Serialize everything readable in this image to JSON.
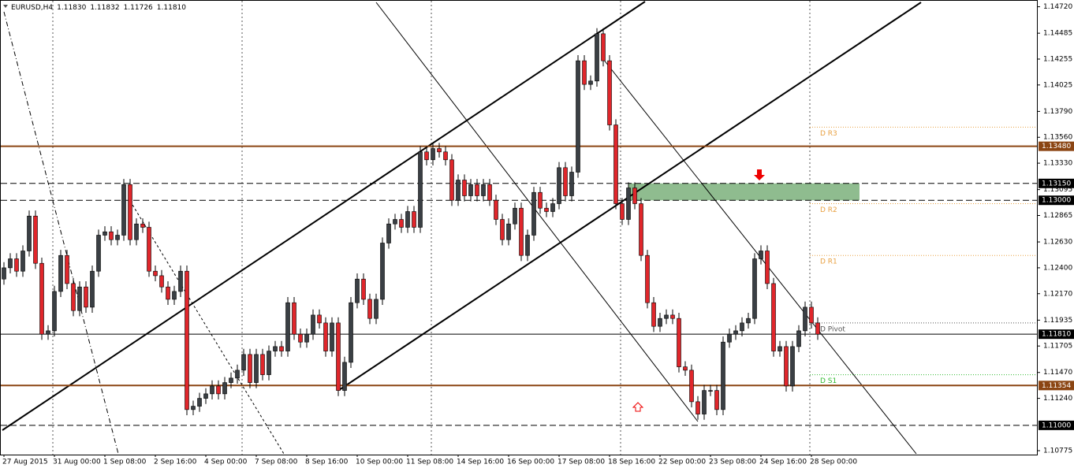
{
  "chart_data": {
    "type": "candlestick",
    "title": "EURUSD,H4",
    "header_values": [
      "1.11830",
      "1.11832",
      "1.11726",
      "1.11810"
    ],
    "up_color": "#3a3f44",
    "down_color": "#e0262b",
    "ylim": [
      1.1074,
      1.1478
    ],
    "yticks": [
      {
        "value": 1.1472,
        "label": "1.14720"
      },
      {
        "value": 1.14485,
        "label": "1.14485"
      },
      {
        "value": 1.14255,
        "label": "1.14255"
      },
      {
        "value": 1.14025,
        "label": "1.14025"
      },
      {
        "value": 1.1379,
        "label": "1.13790"
      },
      {
        "value": 1.1356,
        "label": "1.13560"
      },
      {
        "value": 1.1333,
        "label": "1.13330"
      },
      {
        "value": 1.13095,
        "label": "1.13095"
      },
      {
        "value": 1.12865,
        "label": "1.12865"
      },
      {
        "value": 1.1263,
        "label": "1.12630"
      },
      {
        "value": 1.124,
        "label": "1.12400"
      },
      {
        "value": 1.1217,
        "label": "1.12170"
      },
      {
        "value": 1.11935,
        "label": "1.11935"
      },
      {
        "value": 1.11705,
        "label": "1.11705"
      },
      {
        "value": 1.1147,
        "label": "1.11470"
      },
      {
        "value": 1.1124,
        "label": "1.11240"
      },
      {
        "value": 1.10775,
        "label": "1.10775"
      }
    ],
    "levels": [
      {
        "value": 1.1348,
        "label": "1.13480",
        "color": "#8b4513",
        "style": "solid"
      },
      {
        "value": 1.1315,
        "label": "1.13150",
        "color": "#000000",
        "style": "dashed"
      },
      {
        "value": 1.13,
        "label": "1.13000",
        "color": "#000000",
        "style": "dashed"
      },
      {
        "value": 1.1181,
        "label": "1.11810",
        "color": "#000000",
        "style": "thin"
      },
      {
        "value": 1.11354,
        "label": "1.11354",
        "color": "#8b4513",
        "style": "solid"
      },
      {
        "value": 1.11,
        "label": "1.11000",
        "color": "#000000",
        "style": "dashed"
      }
    ],
    "pivots": [
      {
        "name": "D R3",
        "value": 1.1365,
        "color": "#e8a040"
      },
      {
        "name": "D R2",
        "value": 1.1297,
        "color": "#e8a040"
      },
      {
        "name": "D R1",
        "value": 1.1251,
        "color": "#e8a040"
      },
      {
        "name": "D Pivot",
        "value": 1.1191,
        "color": "#555555"
      },
      {
        "name": "D S1",
        "value": 1.1145,
        "color": "#33bb33"
      }
    ],
    "zone": [
      1.13,
      1.1315
    ],
    "categories": [
      "27 Aug 2015",
      null,
      null,
      null,
      null,
      null,
      null,
      null,
      "31 Aug 00:00",
      null,
      null,
      null,
      null,
      null,
      null,
      null,
      "1 Sep 08:00",
      null,
      null,
      null,
      null,
      null,
      null,
      null,
      "2 Sep 16:00",
      null,
      null,
      null,
      null,
      null,
      null,
      null,
      "4 Sep 00:00",
      null,
      null,
      null,
      null,
      null,
      null,
      null,
      "7 Sep 08:00",
      null,
      null,
      null,
      null,
      null,
      null,
      null,
      "8 Sep 16:00",
      null,
      null,
      null,
      null,
      null,
      null,
      null,
      "10 Sep 00:00",
      null,
      null,
      null,
      null,
      null,
      null,
      null,
      "11 Sep 08:00",
      null,
      null,
      null,
      null,
      null,
      null,
      null,
      "14 Sep 16:00",
      null,
      null,
      null,
      null,
      null,
      null,
      null,
      "16 Sep 00:00",
      null,
      null,
      null,
      null,
      null,
      null,
      null,
      "17 Sep 08:00",
      null,
      null,
      null,
      null,
      null,
      null,
      null,
      "18 Sep 16:00",
      null,
      null,
      null,
      null,
      null,
      null,
      null,
      "22 Sep 00:00",
      null,
      null,
      null,
      null,
      null,
      null,
      null,
      "23 Sep 08:00",
      null,
      null,
      null,
      null,
      null,
      null,
      null,
      "24 Sep 16:00",
      null,
      null,
      null,
      null,
      null,
      null,
      null,
      "28 Sep 00:00",
      null
    ],
    "ohlc": [
      [
        1.123,
        1.1245,
        1.1225,
        1.124
      ],
      [
        1.124,
        1.1253,
        1.1235,
        1.1248
      ],
      [
        1.1248,
        1.1253,
        1.1232,
        1.1237
      ],
      [
        1.1237,
        1.126,
        1.1232,
        1.1255
      ],
      [
        1.1255,
        1.1291,
        1.125,
        1.1286
      ],
      [
        1.1286,
        1.1291,
        1.1239,
        1.1244
      ],
      [
        1.1244,
        1.1249,
        1.1176,
        1.1181
      ],
      [
        1.1181,
        1.1189,
        1.1176,
        1.1184
      ],
      [
        1.1184,
        1.1224,
        1.1179,
        1.1219
      ],
      [
        1.1219,
        1.1256,
        1.1214,
        1.1251
      ],
      [
        1.1251,
        1.1256,
        1.1221,
        1.1226
      ],
      [
        1.1226,
        1.1231,
        1.1197,
        1.1202
      ],
      [
        1.1202,
        1.1228,
        1.1197,
        1.1223
      ],
      [
        1.1223,
        1.1228,
        1.12,
        1.1205
      ],
      [
        1.1205,
        1.1242,
        1.12,
        1.1237
      ],
      [
        1.1237,
        1.1274,
        1.1232,
        1.1269
      ],
      [
        1.1269,
        1.1277,
        1.1264,
        1.1272
      ],
      [
        1.1272,
        1.1277,
        1.126,
        1.1265
      ],
      [
        1.1265,
        1.1274,
        1.126,
        1.1269
      ],
      [
        1.1269,
        1.1319,
        1.1264,
        1.1314
      ],
      [
        1.1314,
        1.1319,
        1.126,
        1.1265
      ],
      [
        1.1265,
        1.1284,
        1.126,
        1.1279
      ],
      [
        1.1279,
        1.1284,
        1.1271,
        1.1276
      ],
      [
        1.1276,
        1.1281,
        1.1232,
        1.1237
      ],
      [
        1.1237,
        1.1242,
        1.1228,
        1.1233
      ],
      [
        1.1233,
        1.1238,
        1.1218,
        1.1223
      ],
      [
        1.1223,
        1.1228,
        1.1207,
        1.1212
      ],
      [
        1.1212,
        1.1224,
        1.1207,
        1.1219
      ],
      [
        1.1219,
        1.1242,
        1.1214,
        1.1237
      ],
      [
        1.1237,
        1.1242,
        1.1109,
        1.1114
      ],
      [
        1.1114,
        1.1122,
        1.1109,
        1.1117
      ],
      [
        1.1117,
        1.1129,
        1.1112,
        1.1124
      ],
      [
        1.1124,
        1.1133,
        1.1119,
        1.1128
      ],
      [
        1.1128,
        1.114,
        1.1123,
        1.1135
      ],
      [
        1.1135,
        1.114,
        1.1123,
        1.1128
      ],
      [
        1.1128,
        1.1143,
        1.1123,
        1.1138
      ],
      [
        1.1138,
        1.1147,
        1.1133,
        1.1142
      ],
      [
        1.1142,
        1.1154,
        1.1137,
        1.1149
      ],
      [
        1.1149,
        1.1168,
        1.1144,
        1.1163
      ],
      [
        1.1163,
        1.1168,
        1.1133,
        1.1138
      ],
      [
        1.1138,
        1.1168,
        1.1133,
        1.1163
      ],
      [
        1.1163,
        1.1168,
        1.114,
        1.1145
      ],
      [
        1.1145,
        1.1171,
        1.114,
        1.1166
      ],
      [
        1.1166,
        1.1175,
        1.1161,
        1.117
      ],
      [
        1.117,
        1.1175,
        1.1161,
        1.1166
      ],
      [
        1.1166,
        1.1214,
        1.1161,
        1.1209
      ],
      [
        1.1209,
        1.1214,
        1.1176,
        1.1181
      ],
      [
        1.1181,
        1.1186,
        1.1169,
        1.1174
      ],
      [
        1.1174,
        1.1186,
        1.1169,
        1.1181
      ],
      [
        1.1181,
        1.1203,
        1.1176,
        1.1198
      ],
      [
        1.1198,
        1.1203,
        1.1186,
        1.1191
      ],
      [
        1.1191,
        1.1196,
        1.1161,
        1.1166
      ],
      [
        1.1166,
        1.1196,
        1.1161,
        1.1191
      ],
      [
        1.1191,
        1.1196,
        1.1126,
        1.1131
      ],
      [
        1.1131,
        1.1161,
        1.1126,
        1.1156
      ],
      [
        1.1156,
        1.1214,
        1.1151,
        1.1209
      ],
      [
        1.1209,
        1.1235,
        1.1204,
        1.123
      ],
      [
        1.123,
        1.1235,
        1.1207,
        1.1212
      ],
      [
        1.1212,
        1.1217,
        1.119,
        1.1195
      ],
      [
        1.1195,
        1.1217,
        1.119,
        1.1212
      ],
      [
        1.1212,
        1.1267,
        1.1207,
        1.1262
      ],
      [
        1.1262,
        1.1284,
        1.1257,
        1.1279
      ],
      [
        1.1279,
        1.1288,
        1.1274,
        1.1283
      ],
      [
        1.1283,
        1.1288,
        1.1271,
        1.1276
      ],
      [
        1.1276,
        1.1295,
        1.1271,
        1.129
      ],
      [
        1.129,
        1.1295,
        1.1271,
        1.1276
      ],
      [
        1.1276,
        1.1348,
        1.1271,
        1.1343
      ],
      [
        1.1343,
        1.1348,
        1.1331,
        1.1336
      ],
      [
        1.1336,
        1.1351,
        1.1331,
        1.1346
      ],
      [
        1.1346,
        1.1351,
        1.1338,
        1.1343
      ],
      [
        1.1343,
        1.1348,
        1.1331,
        1.1336
      ],
      [
        1.1336,
        1.1341,
        1.1295,
        1.13
      ],
      [
        1.13,
        1.1323,
        1.1295,
        1.1318
      ],
      [
        1.1318,
        1.1323,
        1.1299,
        1.1304
      ],
      [
        1.1304,
        1.1319,
        1.1299,
        1.1314
      ],
      [
        1.1314,
        1.1319,
        1.1299,
        1.1304
      ],
      [
        1.1304,
        1.1319,
        1.1299,
        1.1314
      ],
      [
        1.1314,
        1.1319,
        1.1295,
        1.13
      ],
      [
        1.13,
        1.1305,
        1.1278,
        1.1283
      ],
      [
        1.1283,
        1.1288,
        1.126,
        1.1265
      ],
      [
        1.1265,
        1.1284,
        1.126,
        1.1279
      ],
      [
        1.1279,
        1.1298,
        1.1274,
        1.1293
      ],
      [
        1.1293,
        1.1298,
        1.1246,
        1.1251
      ],
      [
        1.1251,
        1.1274,
        1.1246,
        1.1269
      ],
      [
        1.1269,
        1.1312,
        1.1264,
        1.1307
      ],
      [
        1.1307,
        1.1312,
        1.1288,
        1.1293
      ],
      [
        1.1293,
        1.1298,
        1.1285,
        1.129
      ],
      [
        1.129,
        1.1302,
        1.1285,
        1.1297
      ],
      [
        1.1297,
        1.1334,
        1.1292,
        1.1329
      ],
      [
        1.1329,
        1.1334,
        1.1299,
        1.1304
      ],
      [
        1.1304,
        1.133,
        1.1299,
        1.1325
      ],
      [
        1.1325,
        1.1429,
        1.132,
        1.1424
      ],
      [
        1.1424,
        1.1429,
        1.1398,
        1.1403
      ],
      [
        1.1403,
        1.1411,
        1.1398,
        1.1406
      ],
      [
        1.1406,
        1.1453,
        1.1401,
        1.1448
      ],
      [
        1.1448,
        1.1453,
        1.1419,
        1.1424
      ],
      [
        1.1424,
        1.1429,
        1.1362,
        1.1367
      ],
      [
        1.1367,
        1.1372,
        1.1292,
        1.1297
      ],
      [
        1.1297,
        1.1302,
        1.1278,
        1.1283
      ],
      [
        1.1283,
        1.1316,
        1.1278,
        1.1311
      ],
      [
        1.1311,
        1.1316,
        1.1292,
        1.1297
      ],
      [
        1.1297,
        1.1302,
        1.1246,
        1.1251
      ],
      [
        1.1251,
        1.1256,
        1.1204,
        1.1209
      ],
      [
        1.1209,
        1.1214,
        1.1183,
        1.1188
      ],
      [
        1.1188,
        1.12,
        1.1183,
        1.1195
      ],
      [
        1.1195,
        1.1203,
        1.119,
        1.1198
      ],
      [
        1.1198,
        1.1203,
        1.119,
        1.1195
      ],
      [
        1.1195,
        1.12,
        1.1147,
        1.1152
      ],
      [
        1.1152,
        1.1157,
        1.1144,
        1.1149
      ],
      [
        1.1149,
        1.1154,
        1.1116,
        1.1121
      ],
      [
        1.1121,
        1.1126,
        1.1105,
        1.111
      ],
      [
        1.111,
        1.1136,
        1.1105,
        1.1131
      ],
      [
        1.1131,
        1.1136,
        1.1126,
        1.1131
      ],
      [
        1.1131,
        1.1136,
        1.1109,
        1.1114
      ],
      [
        1.1114,
        1.1179,
        1.1109,
        1.1174
      ],
      [
        1.1174,
        1.1186,
        1.1169,
        1.1181
      ],
      [
        1.1181,
        1.1189,
        1.1176,
        1.1184
      ],
      [
        1.1184,
        1.1196,
        1.1179,
        1.1191
      ],
      [
        1.1191,
        1.12,
        1.1186,
        1.1195
      ],
      [
        1.1195,
        1.1253,
        1.119,
        1.1248
      ],
      [
        1.1248,
        1.126,
        1.1243,
        1.1255
      ],
      [
        1.1255,
        1.126,
        1.1221,
        1.1226
      ],
      [
        1.1226,
        1.1231,
        1.1161,
        1.1166
      ],
      [
        1.1166,
        1.1175,
        1.1161,
        1.117
      ],
      [
        1.117,
        1.1175,
        1.113,
        1.1135
      ],
      [
        1.1135,
        1.1175,
        1.113,
        1.117
      ],
      [
        1.117,
        1.1189,
        1.1165,
        1.1184
      ],
      [
        1.1184,
        1.121,
        1.1179,
        1.1205
      ],
      [
        1.1205,
        1.121,
        1.1186,
        1.1191
      ],
      [
        1.1191,
        1.1196,
        1.1176,
        1.1181
      ]
    ]
  }
}
